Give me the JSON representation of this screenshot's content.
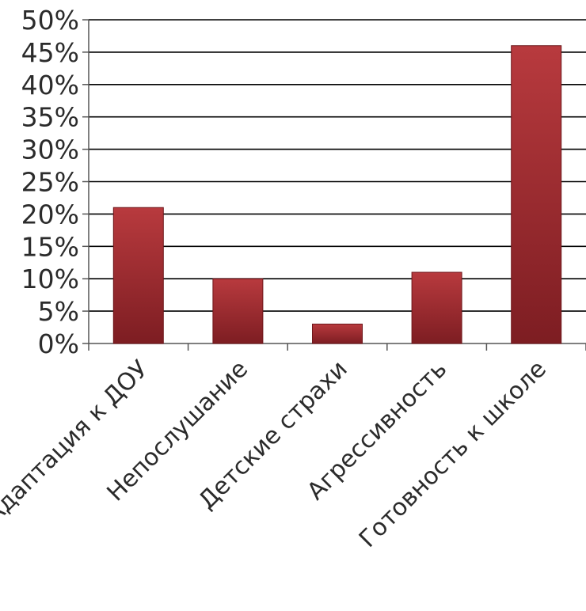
{
  "chart_data": {
    "type": "bar",
    "categories": [
      "Адаптация к ДОУ",
      "Непослушание",
      "Детские страхи",
      "Агрессивность",
      "Готовность к школе"
    ],
    "values": [
      21,
      10,
      3,
      11,
      46
    ],
    "title": "",
    "xlabel": "",
    "ylabel": "",
    "ylim": [
      0,
      50
    ],
    "y_ticks": [
      "0%",
      "5%",
      "10%",
      "15%",
      "20%",
      "25%",
      "30%",
      "35%",
      "40%",
      "45%",
      "50%"
    ],
    "grid": true,
    "legend": "none",
    "colors": {
      "bar": "#a52a2e",
      "bar_dark": "#7d1d22",
      "bar_light": "#b83a3e",
      "grid": "#000000"
    }
  }
}
